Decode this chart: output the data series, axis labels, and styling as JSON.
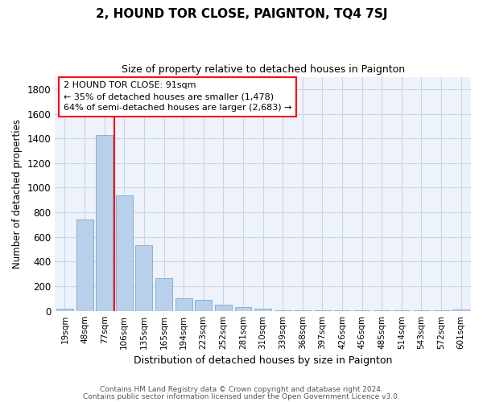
{
  "title": "2, HOUND TOR CLOSE, PAIGNTON, TQ4 7SJ",
  "subtitle": "Size of property relative to detached houses in Paignton",
  "xlabel": "Distribution of detached houses by size in Paignton",
  "ylabel": "Number of detached properties",
  "bar_labels": [
    "19sqm",
    "48sqm",
    "77sqm",
    "106sqm",
    "135sqm",
    "165sqm",
    "194sqm",
    "223sqm",
    "252sqm",
    "281sqm",
    "310sqm",
    "339sqm",
    "368sqm",
    "397sqm",
    "426sqm",
    "456sqm",
    "485sqm",
    "514sqm",
    "543sqm",
    "572sqm",
    "601sqm"
  ],
  "bar_values": [
    20,
    740,
    1430,
    940,
    530,
    265,
    105,
    90,
    50,
    30,
    20,
    5,
    5,
    5,
    5,
    2,
    2,
    2,
    2,
    2,
    10
  ],
  "bar_color": "#b8d0ea",
  "bar_edge_color": "#7aaad0",
  "red_line_x": 2.5,
  "annotation_line1": "2 HOUND TOR CLOSE: 91sqm",
  "annotation_line2": "← 35% of detached houses are smaller (1,478)",
  "annotation_line3": "64% of semi-detached houses are larger (2,683) →",
  "ylim": [
    0,
    1900
  ],
  "yticks": [
    0,
    200,
    400,
    600,
    800,
    1000,
    1200,
    1400,
    1600,
    1800
  ],
  "footer1": "Contains HM Land Registry data © Crown copyright and database right 2024.",
  "footer2": "Contains public sector information licensed under the Open Government Licence v3.0.",
  "bg_color": "#eef2fb",
  "grid_color": "#c8d4e8"
}
